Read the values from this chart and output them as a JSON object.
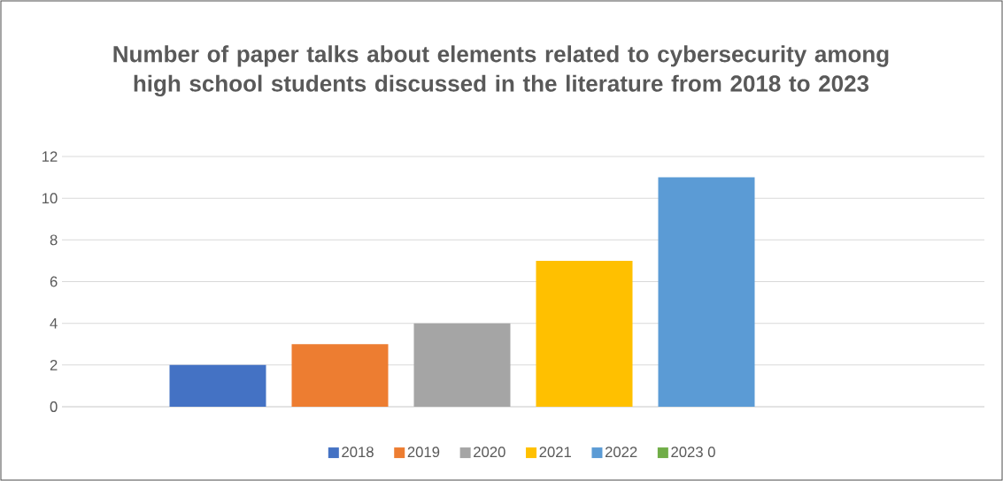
{
  "chart_data": {
    "type": "bar",
    "title": "Number of paper talks about elements related to cybersecurity among high school students discussed in the literature from 2018 to 2023",
    "categories": [
      null
    ],
    "series": [
      {
        "name": "2018",
        "color": "#4472c4",
        "values": [
          2
        ]
      },
      {
        "name": "2019",
        "color": "#ed7d31",
        "values": [
          3
        ]
      },
      {
        "name": "2020",
        "color": "#a5a5a5",
        "values": [
          4
        ]
      },
      {
        "name": "2021",
        "color": "#ffc000",
        "values": [
          7
        ]
      },
      {
        "name": "2022",
        "color": "#5b9bd5",
        "values": [
          11
        ]
      },
      {
        "name": "2023 0",
        "color": "#70ad47",
        "values": [
          0
        ]
      }
    ],
    "ylim": [
      0,
      12
    ],
    "yticks": [
      0,
      2,
      4,
      6,
      8,
      10,
      12
    ],
    "grid": "y",
    "legend": "bottom"
  }
}
